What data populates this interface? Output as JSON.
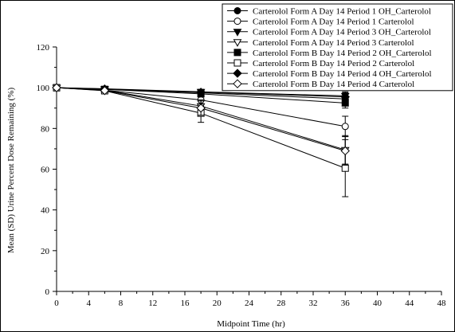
{
  "chart_data": {
    "type": "line",
    "title": "",
    "xlabel": "Midpoint Time (hr)",
    "ylabel": "Mean (SD) Urine Percent Dose Remaining (%)",
    "xlim": [
      0,
      48
    ],
    "ylim": [
      0,
      120
    ],
    "xticks": [
      0,
      4,
      8,
      12,
      16,
      20,
      24,
      28,
      32,
      36,
      40,
      44,
      48
    ],
    "yticks": [
      0,
      20,
      40,
      60,
      80,
      100,
      120
    ],
    "grid": false,
    "legend_position": "top-right",
    "x": [
      0,
      6,
      18,
      36
    ],
    "series": [
      {
        "name": "Carterolol Form A  Day 14  Period 1 OH_Carterolol",
        "marker": "circle-filled",
        "values": [
          100,
          99.3,
          97.5,
          94.5
        ],
        "sd": [
          0,
          0.4,
          1.5,
          2.5
        ]
      },
      {
        "name": "Carterolol Form A  Day 14  Period 1 Carterolol",
        "marker": "circle-open",
        "values": [
          100,
          98.8,
          94,
          81
        ],
        "sd": [
          0,
          0.6,
          3,
          5
        ]
      },
      {
        "name": "Carterolol Form A  Day 14  Period 3 OH_Carterolol",
        "marker": "triangle-down-filled",
        "values": [
          100,
          99.5,
          98,
          96
        ],
        "sd": [
          0,
          0.4,
          1.2,
          2
        ]
      },
      {
        "name": "Carterolol Form A  Day 14  Period 3 Carterolol",
        "marker": "triangle-down-open",
        "values": [
          100,
          98.8,
          91,
          69.5
        ],
        "sd": [
          0,
          0.6,
          3,
          7
        ]
      },
      {
        "name": "Carterolol Form B  Day 14  Period 2 OH_Carterolol",
        "marker": "square-filled",
        "values": [
          100,
          99.2,
          97,
          92.5
        ],
        "sd": [
          0,
          0.4,
          1.5,
          2.5
        ]
      },
      {
        "name": "Carterolol Form B  Day 14  Period 2 Carterolol",
        "marker": "square-open",
        "values": [
          100,
          98.5,
          87.5,
          60.5
        ],
        "sd": [
          0,
          0.6,
          4.5,
          14
        ]
      },
      {
        "name": "Carterolol Form B  Day 14  Period 4 OH_Carterolol",
        "marker": "diamond-filled",
        "values": [
          100,
          99.4,
          97.8,
          95.5
        ],
        "sd": [
          0,
          0.4,
          1.2,
          2
        ]
      },
      {
        "name": "Carterolol Form B  Day 14  Period 4 Carterolol",
        "marker": "diamond-open",
        "values": [
          100,
          98.6,
          90,
          69
        ],
        "sd": [
          0,
          0.6,
          3.5,
          7
        ]
      }
    ]
  }
}
